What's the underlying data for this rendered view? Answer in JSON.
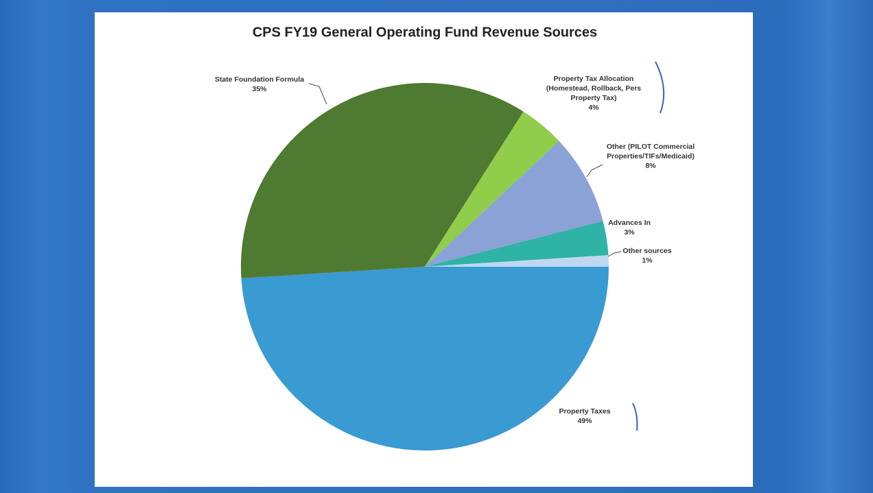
{
  "chart_data": {
    "type": "pie",
    "title": "CPS FY19 General Operating Fund Revenue Sources",
    "categories": [
      "Property Taxes",
      "State Foundation Formula",
      "Property Tax Allocation (Homestead, Rollback, Pers Property Tax)",
      "Other (PILOT Commercial Properties/TIFs/Medicaid)",
      "Advances In",
      "Other sources"
    ],
    "values": [
      49,
      35,
      4,
      8,
      3,
      1
    ],
    "value_labels": [
      "49%",
      "35%",
      "4%",
      "8%",
      "3%",
      "1%"
    ],
    "colors": [
      "#3a9ad2",
      "#4f7a31",
      "#8fcd4b",
      "#8ba2d6",
      "#2eb3a6",
      "#bfd8f1"
    ]
  }
}
